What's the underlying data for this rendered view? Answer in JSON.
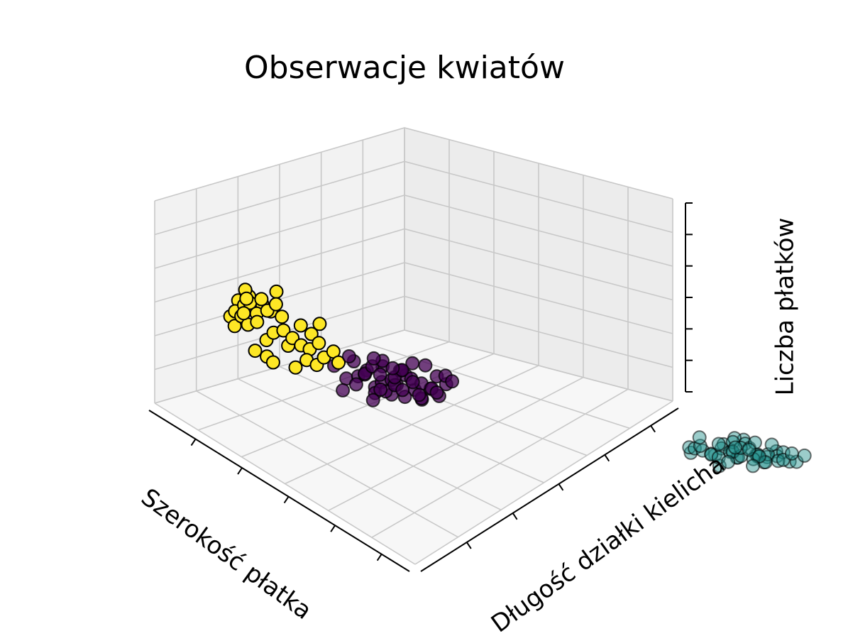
{
  "chart_data": {
    "type": "scatter",
    "title": "Obserwacje kwiatów",
    "xlabel": "Szerokość płatka",
    "ylabel": "Długość działki kielicha",
    "zlabel": "Liczba płatków",
    "projection": "3d",
    "grid": true,
    "legend": "none",
    "series": [
      {
        "color": "#fde725",
        "points": [
          [
            0.1,
            0.08,
            0.9
          ],
          [
            0.06,
            0.1,
            0.86
          ],
          [
            0.08,
            0.14,
            0.92
          ],
          [
            0.12,
            0.06,
            0.84
          ],
          [
            0.05,
            0.05,
            0.8
          ],
          [
            0.09,
            0.12,
            0.95
          ],
          [
            0.15,
            0.1,
            0.88
          ],
          [
            0.18,
            0.08,
            0.82
          ],
          [
            0.14,
            0.16,
            0.86
          ],
          [
            0.2,
            0.12,
            0.9
          ],
          [
            0.22,
            0.15,
            0.84
          ],
          [
            0.25,
            0.1,
            0.78
          ],
          [
            0.07,
            0.18,
            0.82
          ],
          [
            0.11,
            0.2,
            0.88
          ],
          [
            0.16,
            0.05,
            0.76
          ],
          [
            0.19,
            0.18,
            0.92
          ],
          [
            0.24,
            0.2,
            0.86
          ],
          [
            0.28,
            0.14,
            0.8
          ],
          [
            0.13,
            0.24,
            0.84
          ],
          [
            0.26,
            0.24,
            0.9
          ],
          [
            0.3,
            0.22,
            0.74
          ],
          [
            0.17,
            0.26,
            0.96
          ],
          [
            0.32,
            0.18,
            0.7
          ],
          [
            0.21,
            0.28,
            0.82
          ],
          [
            0.35,
            0.26,
            0.76
          ],
          [
            0.27,
            0.3,
            0.66
          ],
          [
            0.38,
            0.3,
            0.72
          ],
          [
            0.4,
            0.34,
            0.68
          ],
          [
            0.23,
            0.09,
            0.98
          ],
          [
            0.33,
            0.12,
            0.64
          ],
          [
            0.29,
            0.36,
            0.78
          ],
          [
            0.36,
            0.4,
            0.74
          ],
          [
            0.42,
            0.38,
            0.66
          ],
          [
            0.31,
            0.08,
            0.94
          ],
          [
            0.45,
            0.42,
            0.7
          ],
          [
            0.44,
            0.36,
            0.6
          ],
          [
            0.48,
            0.44,
            0.62
          ],
          [
            0.52,
            0.48,
            0.66
          ],
          [
            0.39,
            0.2,
            0.58
          ],
          [
            0.34,
            0.06,
            0.86
          ],
          [
            0.46,
            0.3,
            0.56
          ],
          [
            0.5,
            0.4,
            0.58
          ],
          [
            0.43,
            0.16,
            0.62
          ],
          [
            0.37,
            0.44,
            0.8
          ],
          [
            0.55,
            0.5,
            0.6
          ]
        ]
      },
      {
        "color": "#440154",
        "points": [
          [
            0.5,
            0.55,
            0.5
          ],
          [
            0.55,
            0.6,
            0.52
          ],
          [
            0.6,
            0.58,
            0.48
          ],
          [
            0.52,
            0.65,
            0.55
          ],
          [
            0.58,
            0.68,
            0.46
          ],
          [
            0.62,
            0.62,
            0.54
          ],
          [
            0.65,
            0.7,
            0.5
          ],
          [
            0.57,
            0.72,
            0.58
          ],
          [
            0.68,
            0.66,
            0.44
          ],
          [
            0.7,
            0.74,
            0.52
          ],
          [
            0.63,
            0.78,
            0.48
          ],
          [
            0.72,
            0.6,
            0.56
          ],
          [
            0.66,
            0.82,
            0.54
          ],
          [
            0.75,
            0.7,
            0.46
          ],
          [
            0.6,
            0.76,
            0.42
          ],
          [
            0.74,
            0.78,
            0.58
          ],
          [
            0.78,
            0.74,
            0.5
          ],
          [
            0.69,
            0.86,
            0.46
          ],
          [
            0.8,
            0.82,
            0.54
          ],
          [
            0.76,
            0.88,
            0.42
          ],
          [
            0.82,
            0.66,
            0.48
          ],
          [
            0.71,
            0.64,
            0.6
          ],
          [
            0.84,
            0.78,
            0.44
          ],
          [
            0.86,
            0.86,
            0.52
          ],
          [
            0.64,
            0.56,
            0.62
          ],
          [
            0.79,
            0.92,
            0.48
          ],
          [
            0.88,
            0.72,
            0.56
          ],
          [
            0.73,
            0.84,
            0.62
          ],
          [
            0.9,
            0.84,
            0.46
          ],
          [
            0.67,
            0.9,
            0.4
          ],
          [
            0.85,
            0.94,
            0.56
          ],
          [
            0.92,
            0.9,
            0.5
          ],
          [
            0.77,
            0.68,
            0.64
          ],
          [
            0.81,
            0.96,
            0.44
          ],
          [
            0.94,
            0.8,
            0.54
          ],
          [
            0.87,
            0.76,
            0.6
          ],
          [
            0.95,
            0.92,
            0.48
          ],
          [
            0.89,
            0.98,
            0.52
          ],
          [
            0.83,
            0.62,
            0.42
          ],
          [
            0.97,
            0.96,
            0.58
          ],
          [
            0.93,
            0.7,
            0.62
          ],
          [
            0.61,
            0.8,
            0.56
          ],
          [
            0.91,
            0.64,
            0.58
          ],
          [
            0.96,
            0.86,
            0.64
          ],
          [
            0.98,
            0.74,
            0.5
          ],
          [
            0.56,
            0.52,
            0.44
          ],
          [
            0.99,
            0.99,
            0.55
          ],
          [
            0.72,
            0.52,
            0.66
          ],
          [
            0.54,
            0.48,
            0.58
          ],
          [
            0.95,
            0.6,
            0.68
          ]
        ]
      },
      {
        "color": "#21918c",
        "points": [
          [
            0.5,
            2.3,
            0.06
          ],
          [
            0.55,
            2.35,
            0.08
          ],
          [
            0.6,
            2.3,
            0.1
          ],
          [
            0.52,
            2.42,
            0.05
          ],
          [
            0.58,
            2.45,
            0.12
          ],
          [
            0.62,
            2.38,
            0.07
          ],
          [
            0.65,
            2.48,
            0.09
          ],
          [
            0.57,
            2.52,
            0.04
          ],
          [
            0.68,
            2.42,
            0.11
          ],
          [
            0.7,
            2.5,
            0.06
          ],
          [
            0.63,
            2.55,
            0.13
          ],
          [
            0.72,
            2.36,
            0.08
          ],
          [
            0.66,
            2.6,
            0.07
          ],
          [
            0.75,
            2.45,
            0.1
          ],
          [
            0.6,
            2.62,
            0.05
          ],
          [
            0.74,
            2.55,
            0.12
          ],
          [
            0.78,
            2.5,
            0.08
          ],
          [
            0.69,
            2.65,
            0.06
          ],
          [
            0.8,
            2.58,
            0.09
          ],
          [
            0.76,
            2.62,
            0.04
          ],
          [
            0.82,
            2.45,
            0.11
          ],
          [
            0.71,
            2.4,
            0.14
          ],
          [
            0.84,
            2.55,
            0.07
          ],
          [
            0.86,
            2.62,
            0.1
          ],
          [
            0.64,
            2.32,
            0.12
          ],
          [
            0.79,
            2.68,
            0.08
          ],
          [
            0.88,
            2.52,
            0.13
          ],
          [
            0.73,
            2.58,
            0.15
          ],
          [
            0.9,
            2.6,
            0.06
          ],
          [
            0.67,
            2.7,
            0.09
          ],
          [
            0.85,
            2.7,
            0.11
          ],
          [
            0.92,
            2.66,
            0.07
          ],
          [
            0.77,
            2.46,
            0.16
          ],
          [
            0.81,
            2.74,
            0.05
          ],
          [
            0.94,
            2.56,
            0.1
          ],
          [
            0.87,
            2.48,
            0.14
          ],
          [
            0.95,
            2.68,
            0.08
          ],
          [
            0.89,
            2.76,
            0.06
          ],
          [
            0.83,
            2.38,
            0.03
          ],
          [
            0.97,
            2.72,
            0.12
          ],
          [
            0.93,
            2.44,
            0.15
          ],
          [
            0.61,
            2.5,
            0.16
          ],
          [
            0.91,
            2.36,
            0.09
          ],
          [
            0.96,
            2.62,
            0.17
          ],
          [
            0.98,
            2.52,
            0.05
          ],
          [
            0.56,
            2.28,
            0.1
          ],
          [
            0.99,
            2.78,
            0.11
          ],
          [
            0.72,
            2.3,
            0.18
          ],
          [
            0.54,
            2.56,
            0.14
          ],
          [
            0.95,
            2.4,
            0.07
          ]
        ]
      }
    ]
  }
}
